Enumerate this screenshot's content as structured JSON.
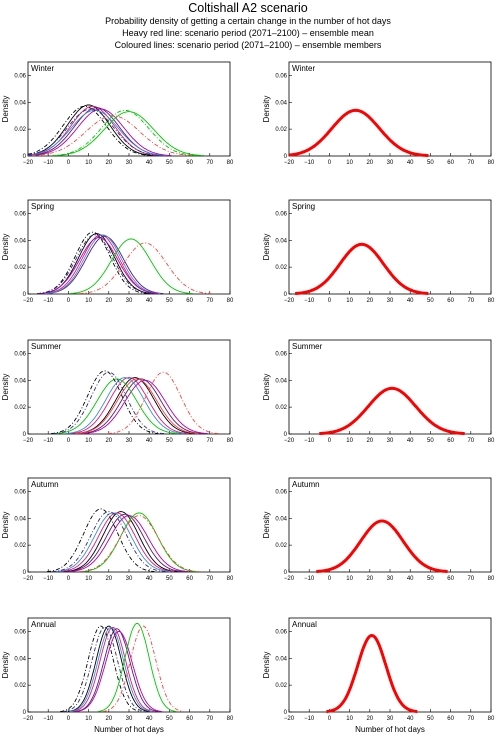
{
  "title": "Coltishall A2 scenario",
  "subtitle": "Probability density of getting a certain change in the number of hot days",
  "legend_lines": [
    "Heavy red line: scenario period (2071–2100) – ensemble mean",
    "Coloured lines: scenario period (2071–2100) – ensemble members"
  ],
  "colors": {
    "ensemble_mean": "#ff0000",
    "members": [
      "#000000",
      "#e0197f",
      "#5a1a6e",
      "#3a8fd8",
      "#00c800",
      "#ff4040",
      "#b000b0",
      "#2b2b80"
    ]
  },
  "axes": {
    "xlabel": "Number of hot days",
    "ylabel": "Density",
    "xlim": [
      -20,
      80
    ],
    "ylim": [
      0,
      0.07
    ],
    "xticks": [
      "−20",
      "−10",
      "0",
      "10",
      "20",
      "30",
      "40",
      "50",
      "60",
      "70",
      "80"
    ],
    "yticks": [
      "0",
      "0.02",
      "0.04",
      "0.06"
    ]
  },
  "chart_data": [
    {
      "type": "line",
      "season": "Winter",
      "column": "members",
      "series": [
        {
          "style": "solid",
          "color": "#000000",
          "mean": 10,
          "peak": 0.038
        },
        {
          "style": "solid",
          "color": "#e0197f",
          "mean": 12,
          "peak": 0.037
        },
        {
          "style": "solid",
          "color": "#5a1a6e",
          "mean": 14,
          "peak": 0.036
        },
        {
          "style": "solid",
          "color": "#3a8fd8",
          "mean": 13,
          "peak": 0.034
        },
        {
          "style": "solid",
          "color": "#b000b0",
          "mean": 16,
          "peak": 0.035
        },
        {
          "style": "dashdot",
          "color": "#000000",
          "mean": 8,
          "peak": 0.037
        },
        {
          "style": "dashdot",
          "color": "#2b2b80",
          "mean": 11,
          "peak": 0.035
        },
        {
          "style": "dashdot",
          "color": "#ff4040",
          "mean": 22,
          "peak": 0.03
        },
        {
          "style": "solid",
          "color": "#00c800",
          "mean": 30,
          "peak": 0.033
        },
        {
          "style": "dashdot",
          "color": "#00c800",
          "mean": 28,
          "peak": 0.034
        }
      ]
    },
    {
      "type": "line",
      "season": "Winter",
      "column": "mean",
      "series": [
        {
          "style": "heavy",
          "color": "#ff0000",
          "mean": 13,
          "peak": 0.034
        }
      ]
    },
    {
      "type": "line",
      "season": "Spring",
      "column": "members",
      "series": [
        {
          "style": "solid",
          "color": "#000000",
          "mean": 14,
          "peak": 0.045
        },
        {
          "style": "solid",
          "color": "#e0197f",
          "mean": 16,
          "peak": 0.044
        },
        {
          "style": "solid",
          "color": "#5a1a6e",
          "mean": 18,
          "peak": 0.043
        },
        {
          "style": "solid",
          "color": "#3a8fd8",
          "mean": 17,
          "peak": 0.044
        },
        {
          "style": "solid",
          "color": "#b000b0",
          "mean": 15,
          "peak": 0.042
        },
        {
          "style": "dashdot",
          "color": "#000000",
          "mean": 12,
          "peak": 0.046
        },
        {
          "style": "dashdot",
          "color": "#2b2b80",
          "mean": 13,
          "peak": 0.044
        },
        {
          "style": "solid",
          "color": "#00c800",
          "mean": 31,
          "peak": 0.041
        },
        {
          "style": "dashdot",
          "color": "#ff4040",
          "mean": 38,
          "peak": 0.038
        }
      ]
    },
    {
      "type": "line",
      "season": "Spring",
      "column": "mean",
      "series": [
        {
          "style": "heavy",
          "color": "#ff0000",
          "mean": 16,
          "peak": 0.037
        }
      ]
    },
    {
      "type": "line",
      "season": "Summer",
      "column": "members",
      "series": [
        {
          "style": "solid",
          "color": "#000000",
          "mean": 33,
          "peak": 0.042
        },
        {
          "style": "solid",
          "color": "#e0197f",
          "mean": 30,
          "peak": 0.042
        },
        {
          "style": "solid",
          "color": "#5a1a6e",
          "mean": 36,
          "peak": 0.041
        },
        {
          "style": "solid",
          "color": "#3a8fd8",
          "mean": 28,
          "peak": 0.042
        },
        {
          "style": "solid",
          "color": "#b000b0",
          "mean": 38,
          "peak": 0.04
        },
        {
          "style": "solid",
          "color": "#00c800",
          "mean": 24,
          "peak": 0.041
        },
        {
          "style": "solid",
          "color": "#ff4040",
          "mean": 34,
          "peak": 0.041
        },
        {
          "style": "dashdot",
          "color": "#000000",
          "mean": 18,
          "peak": 0.047
        },
        {
          "style": "dashdot",
          "color": "#2b2b80",
          "mean": 20,
          "peak": 0.046
        },
        {
          "style": "dashdot",
          "color": "#ff4040",
          "mean": 47,
          "peak": 0.046
        }
      ]
    },
    {
      "type": "line",
      "season": "Summer",
      "column": "mean",
      "series": [
        {
          "style": "heavy",
          "color": "#ff0000",
          "mean": 31,
          "peak": 0.034
        }
      ]
    },
    {
      "type": "line",
      "season": "Autumn",
      "column": "members",
      "series": [
        {
          "style": "solid",
          "color": "#000000",
          "mean": 26,
          "peak": 0.045
        },
        {
          "style": "solid",
          "color": "#e0197f",
          "mean": 24,
          "peak": 0.044
        },
        {
          "style": "solid",
          "color": "#5a1a6e",
          "mean": 28,
          "peak": 0.043
        },
        {
          "style": "solid",
          "color": "#3a8fd8",
          "mean": 22,
          "peak": 0.044
        },
        {
          "style": "solid",
          "color": "#b000b0",
          "mean": 30,
          "peak": 0.042
        },
        {
          "style": "solid",
          "color": "#00c800",
          "mean": 35,
          "peak": 0.044
        },
        {
          "style": "dashdot",
          "color": "#000000",
          "mean": 16,
          "peak": 0.047
        },
        {
          "style": "dashdot",
          "color": "#2b2b80",
          "mean": 20,
          "peak": 0.045
        },
        {
          "style": "dashdot",
          "color": "#ff4040",
          "mean": 35,
          "peak": 0.042
        }
      ]
    },
    {
      "type": "line",
      "season": "Autumn",
      "column": "mean",
      "series": [
        {
          "style": "heavy",
          "color": "#ff0000",
          "mean": 26,
          "peak": 0.038
        }
      ]
    },
    {
      "type": "line",
      "season": "Annual",
      "column": "members",
      "series": [
        {
          "style": "solid",
          "color": "#000000",
          "mean": 20,
          "peak": 0.064
        },
        {
          "style": "solid",
          "color": "#e0197f",
          "mean": 22,
          "peak": 0.063
        },
        {
          "style": "solid",
          "color": "#5a1a6e",
          "mean": 24,
          "peak": 0.062
        },
        {
          "style": "solid",
          "color": "#3a8fd8",
          "mean": 21,
          "peak": 0.063
        },
        {
          "style": "solid",
          "color": "#b000b0",
          "mean": 25,
          "peak": 0.06
        },
        {
          "style": "dashdot",
          "color": "#000000",
          "mean": 16,
          "peak": 0.064
        },
        {
          "style": "dashdot",
          "color": "#2b2b80",
          "mean": 18,
          "peak": 0.063
        },
        {
          "style": "solid",
          "color": "#00c800",
          "mean": 34,
          "peak": 0.066
        },
        {
          "style": "dashdot",
          "color": "#ff4040",
          "mean": 37,
          "peak": 0.064
        }
      ]
    },
    {
      "type": "line",
      "season": "Annual",
      "column": "mean",
      "series": [
        {
          "style": "heavy",
          "color": "#ff0000",
          "mean": 21,
          "peak": 0.057
        }
      ]
    }
  ]
}
